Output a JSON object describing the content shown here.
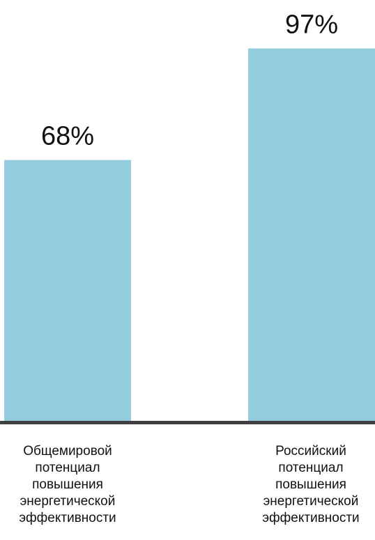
{
  "chart_data": {
    "type": "bar",
    "categories": [
      "Общемировой потенциал повышения энергетической эффективности",
      "Российский потенциал повышения энергетической эффективности"
    ],
    "category_lines": [
      [
        "Общемировой",
        "потенциал",
        "повышения",
        "энергетической",
        "эффективности"
      ],
      [
        "Российский",
        "потенциал",
        "повышения",
        "энергетической",
        "эффективности"
      ]
    ],
    "values": [
      68,
      97
    ],
    "data_labels": [
      "68%",
      "97%"
    ],
    "ylim": [
      0,
      100
    ],
    "grid": false,
    "legend": "none",
    "colors": {
      "bar": "#95CCDD",
      "baseline": "#404040",
      "text": "#111111"
    }
  }
}
